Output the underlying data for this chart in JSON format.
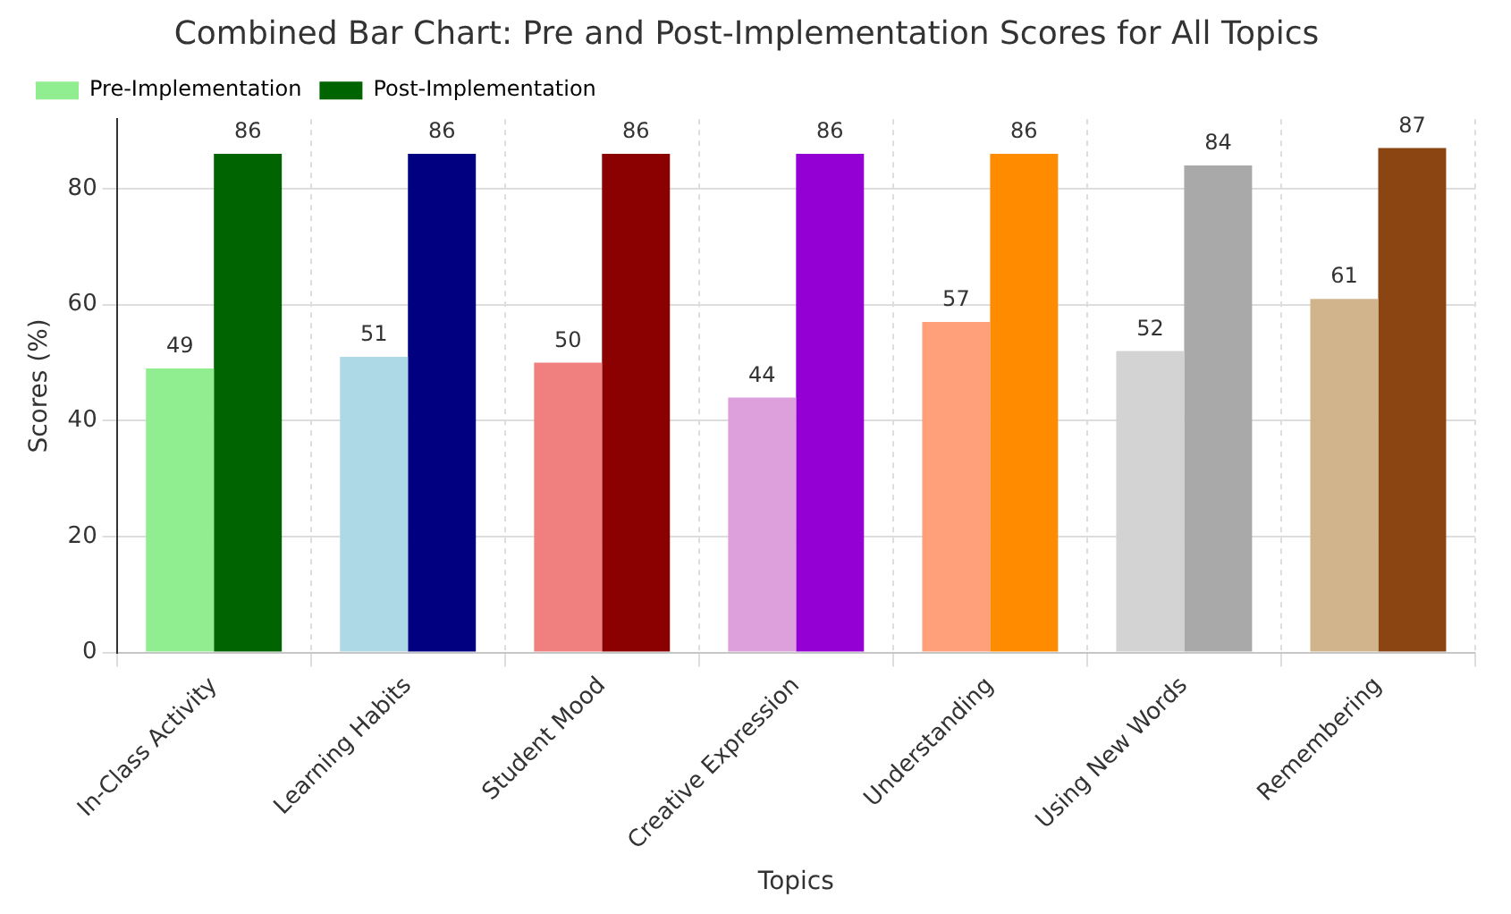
{
  "chart_data": {
    "type": "bar",
    "title": "Combined Bar Chart: Pre and Post-Implementation Scores for All Topics",
    "xlabel": "Topics",
    "ylabel": "Scores (%)",
    "categories": [
      "In-Class Activity",
      "Learning Habits",
      "Student Mood",
      "Creative Expression",
      "Understanding",
      "Using New Words",
      "Remembering"
    ],
    "series": [
      {
        "name": "Pre-Implementation",
        "color": "#90ee90",
        "colors": [
          "#90ee90",
          "#add8e6",
          "#f08080",
          "#dda0dd",
          "#ffa07a",
          "#d3d3d3",
          "#d2b48c"
        ],
        "values": [
          49,
          51,
          50,
          44,
          57,
          52,
          61
        ]
      },
      {
        "name": "Post-Implementation",
        "color": "#006400",
        "colors": [
          "#006400",
          "#000080",
          "#8b0000",
          "#9400d3",
          "#ff8c00",
          "#a9a9a9",
          "#8b4513"
        ],
        "values": [
          86,
          86,
          86,
          86,
          86,
          84,
          87
        ]
      }
    ],
    "ylim": [
      0,
      92
    ],
    "yticks": [
      0,
      20,
      40,
      60,
      80
    ],
    "grid": true,
    "legend": "top left",
    "data_labels": true
  }
}
